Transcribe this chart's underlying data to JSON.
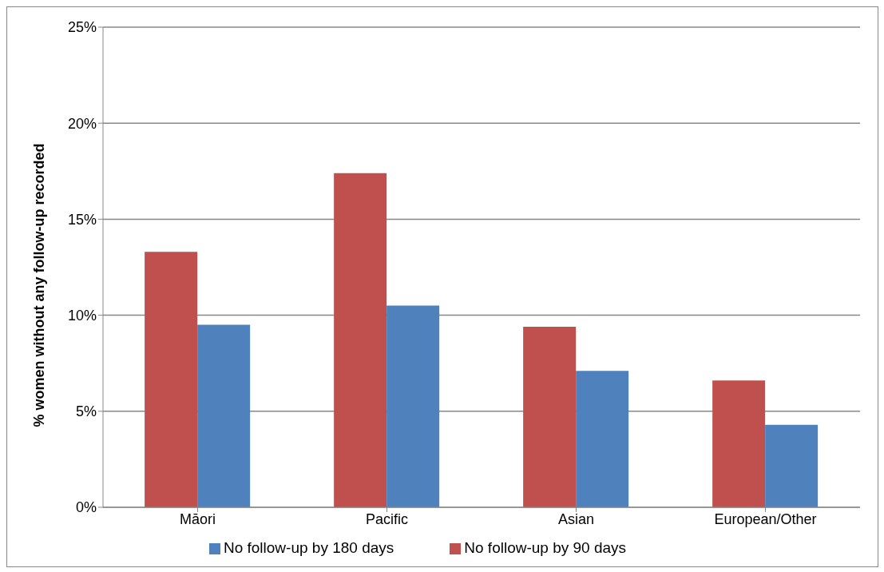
{
  "chart_data": {
    "type": "bar",
    "categories": [
      "Māori",
      "Pacific",
      "Asian",
      "European/Other"
    ],
    "series": [
      {
        "name": "No follow-up by 90 days",
        "color": "#c0504d",
        "values": [
          13.3,
          17.4,
          9.4,
          6.6
        ]
      },
      {
        "name": "No follow-up by 180 days",
        "color": "#4f81bd",
        "values": [
          9.5,
          10.5,
          7.1,
          4.3
        ]
      }
    ],
    "ylabel": "% women without any follow-up recorded",
    "ylim": [
      0,
      25
    ],
    "yticks": [
      {
        "value": 0,
        "label": "0%"
      },
      {
        "value": 5,
        "label": "5%"
      },
      {
        "value": 10,
        "label": "10%"
      },
      {
        "value": 15,
        "label": "15%"
      },
      {
        "value": 20,
        "label": "20%"
      },
      {
        "value": 25,
        "label": "25%"
      }
    ],
    "grid": "y",
    "legend": "bottom"
  }
}
